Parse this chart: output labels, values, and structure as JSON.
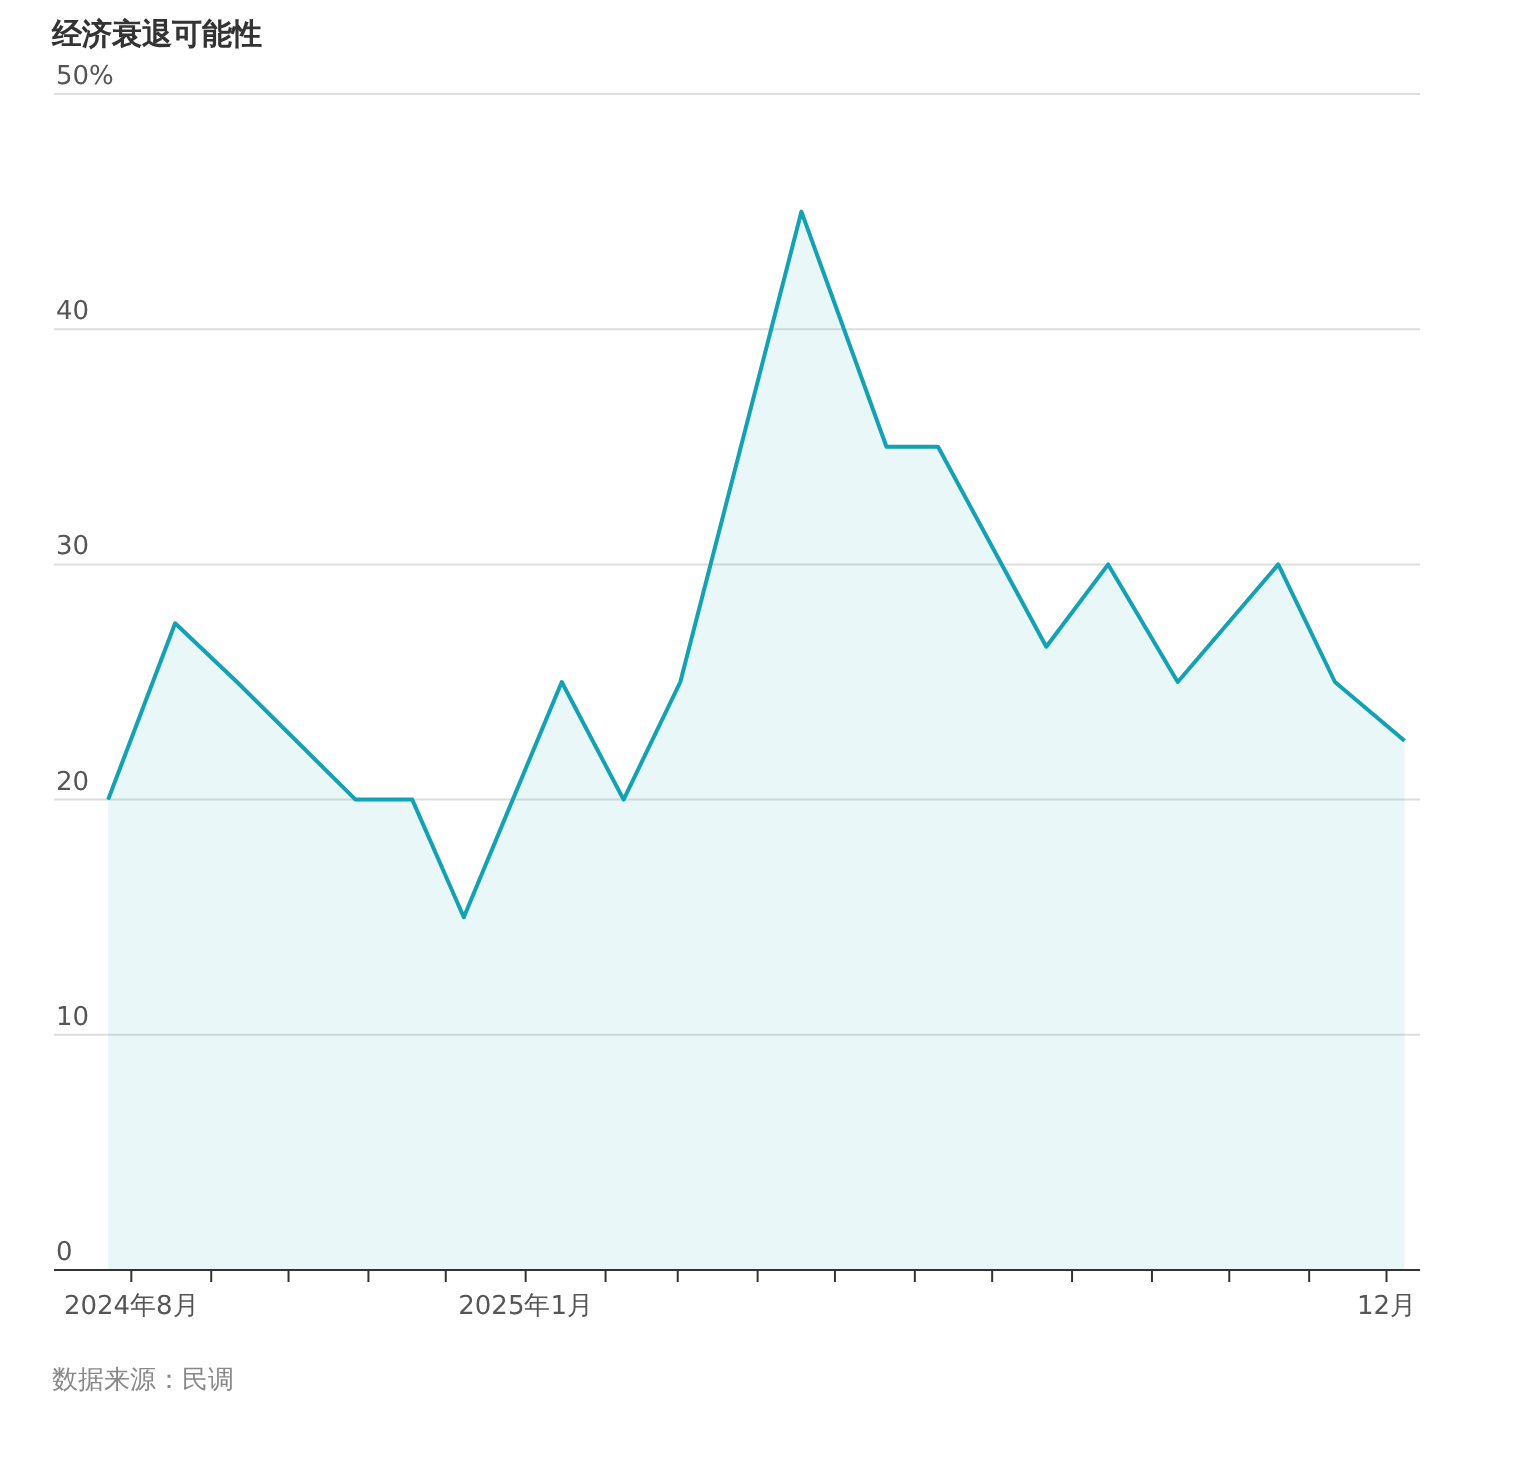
{
  "chart_data": {
    "type": "area",
    "title": "经济衰退可能性",
    "x": [
      "2024-07-23",
      "2024-08-18",
      "2024-09-11",
      "2024-10-27",
      "2024-11-18",
      "2024-12-08",
      "2025-01-15",
      "2025-02-08",
      "2025-03-02",
      "2025-04-18",
      "2025-05-21",
      "2025-06-10",
      "2025-07-22",
      "2025-08-15",
      "2025-09-11",
      "2025-10-20",
      "2025-11-11",
      "2025-12-08"
    ],
    "series": [
      {
        "color": "#13a1b3",
        "values": [
          20,
          27.5,
          25,
          20,
          20,
          15,
          25,
          20,
          25,
          45,
          35,
          35,
          26.5,
          30,
          25,
          30,
          25,
          22.5
        ]
      }
    ],
    "xlim": [
      "2024-07-02",
      "2025-12-14"
    ],
    "xticks": [
      {
        "value": "2024-08-01",
        "label": "2024年8月"
      },
      {
        "value": "2024-09-01",
        "label": null
      },
      {
        "value": "2024-10-01",
        "label": null
      },
      {
        "value": "2024-11-01",
        "label": null
      },
      {
        "value": "2024-12-01",
        "label": null
      },
      {
        "value": "2025-01-01",
        "label": "2025年1月"
      },
      {
        "value": "2025-02-01",
        "label": null
      },
      {
        "value": "2025-03-01",
        "label": null
      },
      {
        "value": "2025-04-01",
        "label": null
      },
      {
        "value": "2025-05-01",
        "label": null
      },
      {
        "value": "2025-06-01",
        "label": null
      },
      {
        "value": "2025-07-01",
        "label": null
      },
      {
        "value": "2025-08-01",
        "label": null
      },
      {
        "value": "2025-09-01",
        "label": null
      },
      {
        "value": "2025-10-01",
        "label": null
      },
      {
        "value": "2025-11-01",
        "label": null
      },
      {
        "value": "2025-12-01",
        "label": "12月"
      }
    ],
    "ylim": [
      0,
      50
    ],
    "yticks": [
      0,
      10,
      20,
      30,
      40,
      {
        "value": 50,
        "label": "50%"
      }
    ],
    "grid": "y",
    "annotations": [
      "数据来源：民调"
    ]
  }
}
